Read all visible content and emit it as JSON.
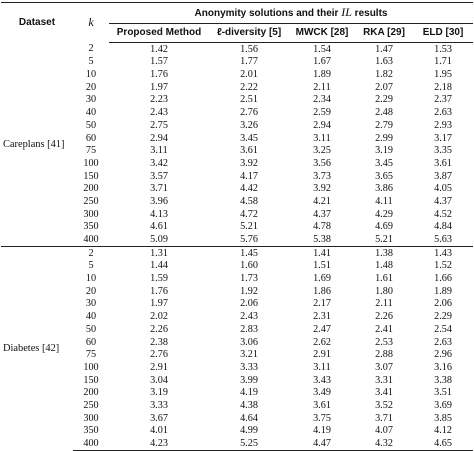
{
  "header": {
    "dataset": "Dataset",
    "k": "k",
    "group_prefix": "Anonymity solutions and their ",
    "group_il": "IL",
    "group_suffix": " results",
    "columns": [
      "Proposed Method",
      "ℓ-diversity [5]",
      "MWCK [28]",
      "RKA [29]",
      "ELD [30]"
    ]
  },
  "groups": [
    {
      "name": "Careplans [41]",
      "rows": [
        {
          "k": "2",
          "v": [
            "1.42",
            "1.56",
            "1.54",
            "1.47",
            "1.53"
          ]
        },
        {
          "k": "5",
          "v": [
            "1.57",
            "1.77",
            "1.67",
            "1.63",
            "1.71"
          ]
        },
        {
          "k": "10",
          "v": [
            "1.76",
            "2.01",
            "1.89",
            "1.82",
            "1.95"
          ]
        },
        {
          "k": "20",
          "v": [
            "1.97",
            "2.22",
            "2.11",
            "2.07",
            "2.18"
          ]
        },
        {
          "k": "30",
          "v": [
            "2.23",
            "2.51",
            "2.34",
            "2.29",
            "2.37"
          ]
        },
        {
          "k": "40",
          "v": [
            "2.43",
            "2.76",
            "2.59",
            "2.48",
            "2.63"
          ]
        },
        {
          "k": "50",
          "v": [
            "2.75",
            "3.26",
            "2.94",
            "2.79",
            "2.93"
          ]
        },
        {
          "k": "60",
          "v": [
            "2.94",
            "3.45",
            "3.11",
            "2.99",
            "3.17"
          ]
        },
        {
          "k": "75",
          "v": [
            "3.11",
            "3.61",
            "3.25",
            "3.19",
            "3.35"
          ]
        },
        {
          "k": "100",
          "v": [
            "3.42",
            "3.92",
            "3.56",
            "3.45",
            "3.61"
          ]
        },
        {
          "k": "150",
          "v": [
            "3.57",
            "4.17",
            "3.73",
            "3.65",
            "3.87"
          ]
        },
        {
          "k": "200",
          "v": [
            "3.71",
            "4.42",
            "3.92",
            "3.86",
            "4.05"
          ]
        },
        {
          "k": "250",
          "v": [
            "3.96",
            "4.58",
            "4.21",
            "4.11",
            "4.37"
          ]
        },
        {
          "k": "300",
          "v": [
            "4.13",
            "4.72",
            "4.37",
            "4.29",
            "4.52"
          ]
        },
        {
          "k": "350",
          "v": [
            "4.61",
            "5.21",
            "4.78",
            "4.69",
            "4.84"
          ]
        },
        {
          "k": "400",
          "v": [
            "5.09",
            "5.76",
            "5.38",
            "5.21",
            "5.63"
          ]
        }
      ]
    },
    {
      "name": "Diabetes [42]",
      "rows": [
        {
          "k": "2",
          "v": [
            "1.31",
            "1.45",
            "1.41",
            "1.38",
            "1.43"
          ]
        },
        {
          "k": "5",
          "v": [
            "1.44",
            "1.60",
            "1.51",
            "1.48",
            "1.52"
          ]
        },
        {
          "k": "10",
          "v": [
            "1.59",
            "1.73",
            "1.69",
            "1.61",
            "1.66"
          ]
        },
        {
          "k": "20",
          "v": [
            "1.76",
            "1.92",
            "1.86",
            "1.80",
            "1.89"
          ]
        },
        {
          "k": "30",
          "v": [
            "1.97",
            "2.06",
            "2.17",
            "2.11",
            "2.06"
          ]
        },
        {
          "k": "40",
          "v": [
            "2.02",
            "2.43",
            "2.31",
            "2.26",
            "2.29"
          ]
        },
        {
          "k": "50",
          "v": [
            "2.26",
            "2.83",
            "2.47",
            "2.41",
            "2.54"
          ]
        },
        {
          "k": "60",
          "v": [
            "2.38",
            "3.06",
            "2.62",
            "2.53",
            "2.63"
          ]
        },
        {
          "k": "75",
          "v": [
            "2.76",
            "3.21",
            "2.91",
            "2.88",
            "2.96"
          ]
        },
        {
          "k": "100",
          "v": [
            "2.91",
            "3.33",
            "3.11",
            "3.07",
            "3.16"
          ]
        },
        {
          "k": "150",
          "v": [
            "3.04",
            "3.99",
            "3.43",
            "3.31",
            "3.38"
          ]
        },
        {
          "k": "200",
          "v": [
            "3.19",
            "4.19",
            "3.49",
            "3.41",
            "3.51"
          ]
        },
        {
          "k": "250",
          "v": [
            "3.33",
            "4.38",
            "3.61",
            "3.52",
            "3.69"
          ]
        },
        {
          "k": "300",
          "v": [
            "3.67",
            "4.64",
            "3.75",
            "3.71",
            "3.85"
          ]
        },
        {
          "k": "350",
          "v": [
            "4.01",
            "4.99",
            "4.19",
            "4.07",
            "4.12"
          ]
        },
        {
          "k": "400",
          "v": [
            "4.23",
            "5.25",
            "4.47",
            "4.32",
            "4.65"
          ]
        }
      ]
    }
  ]
}
